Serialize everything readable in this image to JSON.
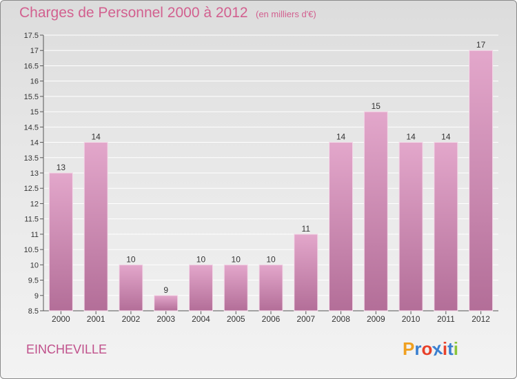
{
  "header": {
    "title": "Charges de Personnel 2000 à 2012",
    "subtitle": "(en milliers d'€)"
  },
  "footer": {
    "city": "EINCHEVILLE",
    "logo": "Proxiti",
    "logo_colors": [
      "#f0a020",
      "#3a7fd0",
      "#e8402a",
      "#3a7fd0",
      "#e8402a",
      "#3a7fd0",
      "#8ac43a"
    ]
  },
  "chart_data": {
    "type": "bar",
    "categories": [
      "2000",
      "2001",
      "2002",
      "2003",
      "2004",
      "2005",
      "2006",
      "2007",
      "2008",
      "2009",
      "2010",
      "2011",
      "2012"
    ],
    "values": [
      13,
      14,
      10,
      9,
      10,
      10,
      10,
      11,
      14,
      15,
      14,
      14,
      17
    ],
    "data_labels": [
      "13",
      "14",
      "10",
      "9",
      "10",
      "10",
      "10",
      "11",
      "14",
      "15",
      "14",
      "14",
      "17"
    ],
    "ylim": [
      8.5,
      17.5
    ],
    "yticks": [
      "8.5",
      "9",
      "9.5",
      "10",
      "10.5",
      "11",
      "11.5",
      "12",
      "12.5",
      "13",
      "13.5",
      "14",
      "14.5",
      "15",
      "15.5",
      "16",
      "16.5",
      "17",
      "17.5"
    ],
    "grid": true,
    "bar_color": "#c877a8"
  }
}
